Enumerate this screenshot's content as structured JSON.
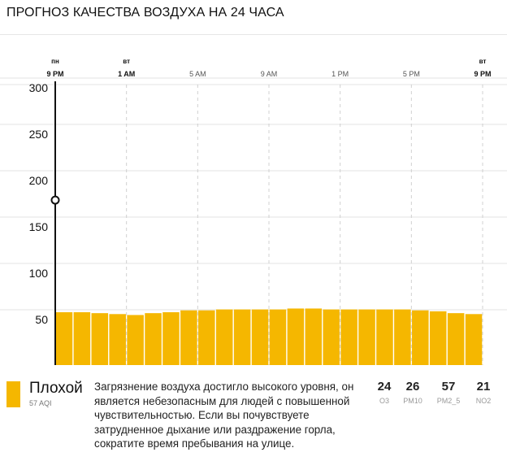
{
  "header": {
    "title": "ПРОГНОЗ КАЧЕСТВА ВОЗДУХА НА 24 ЧАСА"
  },
  "colors": {
    "bar": "#f5b700",
    "now_line": "#111111",
    "grid": "#e3e3e3"
  },
  "chart_data": {
    "type": "bar",
    "title": "ПРОГНОЗ КАЧЕСТВА ВОЗДУХА НА 24 ЧАСА",
    "xlabel": "",
    "ylabel": "",
    "ylim": [
      0,
      320
    ],
    "yticks": [
      50,
      100,
      150,
      200,
      250,
      300
    ],
    "x_ticks": [
      {
        "day": "ПН",
        "time": "9 PM",
        "bold": true
      },
      {
        "day": "ВТ",
        "time": "1 AM",
        "bold": true
      },
      {
        "day": "",
        "time": "5 AM",
        "bold": false
      },
      {
        "day": "",
        "time": "9 AM",
        "bold": false
      },
      {
        "day": "",
        "time": "1 PM",
        "bold": false
      },
      {
        "day": "",
        "time": "5 PM",
        "bold": false
      },
      {
        "day": "ВТ",
        "time": "9 PM",
        "bold": true
      }
    ],
    "current_marker_value": 178,
    "grid": true,
    "series": [
      {
        "values": [
          57,
          57,
          56,
          55,
          54,
          56,
          57,
          59,
          59,
          60,
          60,
          60,
          60,
          61,
          61,
          60,
          60,
          60,
          60,
          60,
          59,
          58,
          56,
          55
        ]
      }
    ]
  },
  "summary": {
    "category": "Плохой",
    "aqi": "57 AQI",
    "description": "Загрязнение воздуха достигло высокого уровня, он является небезопасным для людей с повышенной чувствительностью. Если вы почувствуете затрудненное дыхание или раздражение горла, сократите время пребывания на улице."
  },
  "pollutants": [
    {
      "value": "24",
      "name": "O3"
    },
    {
      "value": "26",
      "name": "PM10"
    },
    {
      "value": "57",
      "name": "PM2_5"
    },
    {
      "value": "21",
      "name": "NO2"
    }
  ]
}
